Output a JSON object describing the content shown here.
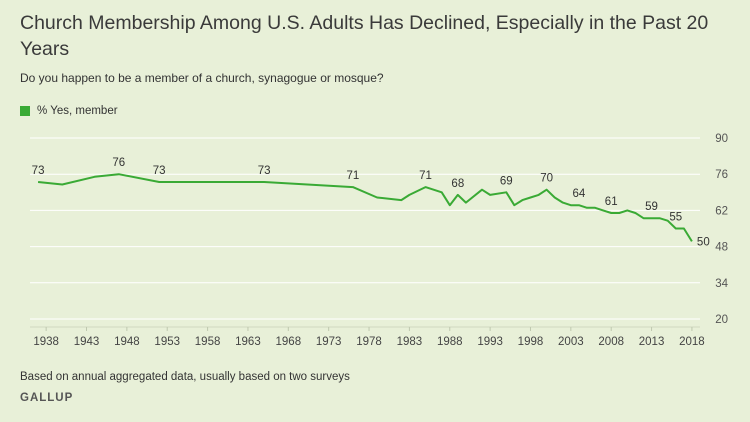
{
  "chart_data": {
    "type": "line",
    "title": "Church Membership Among U.S. Adults Has Declined, Especially in the Past 20 Years",
    "subtitle": "Do you happen to be a member of a church, synagogue or mosque?",
    "xlabel": "",
    "ylabel": "",
    "xlim": [
      1936,
      2019
    ],
    "ylim": [
      20,
      90
    ],
    "x_ticks": [
      "1938",
      "1943",
      "1948",
      "1953",
      "1958",
      "1963",
      "1968",
      "1973",
      "1978",
      "1983",
      "1988",
      "1993",
      "1998",
      "2003",
      "2008",
      "2013",
      "2018"
    ],
    "y_ticks": [
      "90",
      "76",
      "62",
      "48",
      "34",
      "20"
    ],
    "grid": true,
    "legend_position": "top-left",
    "series": [
      {
        "name": "% Yes, member",
        "color": "#3aaa35",
        "x": [
          1937,
          1940,
          1944,
          1947,
          1952,
          1965,
          1976,
          1979,
          1982,
          1983,
          1985,
          1987,
          1988,
          1989,
          1990,
          1992,
          1993,
          1995,
          1996,
          1997,
          1998,
          1999,
          2000,
          2001,
          2002,
          2003,
          2004,
          2005,
          2006,
          2007,
          2008,
          2009,
          2010,
          2011,
          2012,
          2013,
          2014,
          2015,
          2016,
          2017,
          2018
        ],
        "y": [
          73,
          72,
          75,
          76,
          73,
          73,
          71,
          67,
          66,
          68,
          71,
          69,
          64,
          68,
          65,
          70,
          68,
          69,
          64,
          66,
          67,
          68,
          70,
          67,
          65,
          64,
          64,
          63,
          63,
          62,
          61,
          61,
          62,
          61,
          59,
          59,
          59,
          58,
          55,
          55,
          50
        ]
      }
    ],
    "data_labels": [
      {
        "x": 1937,
        "text": "73"
      },
      {
        "x": 1947,
        "text": "76"
      },
      {
        "x": 1952,
        "text": "73"
      },
      {
        "x": 1965,
        "text": "73"
      },
      {
        "x": 1976,
        "text": "71"
      },
      {
        "x": 1985,
        "text": "71"
      },
      {
        "x": 1989,
        "text": "68"
      },
      {
        "x": 1995,
        "text": "69"
      },
      {
        "x": 2000,
        "text": "70"
      },
      {
        "x": 2004,
        "text": "64"
      },
      {
        "x": 2008,
        "text": "61"
      },
      {
        "x": 2013,
        "text": "59"
      },
      {
        "x": 2016,
        "text": "55"
      },
      {
        "x": 2018,
        "text": "50"
      }
    ]
  },
  "note": "Based on annual aggregated data, usually based on two surveys",
  "brand": "GALLUP"
}
